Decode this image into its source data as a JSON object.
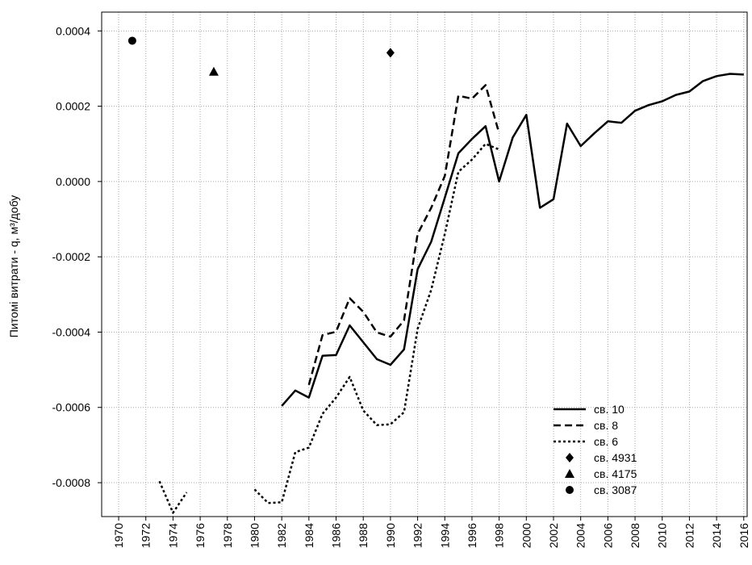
{
  "chart_data": {
    "type": "line",
    "ylabel": "Питомі витрати - q, м³/добу",
    "xlim": [
      1968.75,
      2016.25
    ],
    "xticks": [
      1970,
      1972,
      1974,
      1976,
      1978,
      1980,
      1982,
      1984,
      1986,
      1988,
      1990,
      1992,
      1994,
      1996,
      1998,
      2000,
      2002,
      2004,
      2006,
      2008,
      2010,
      2012,
      2014,
      2016
    ],
    "ylim": [
      -0.00089,
      0.00045
    ],
    "yticks": [
      0.0004,
      0.0002,
      {
        "value": 0,
        "label": "0.0000"
      },
      -0.0002,
      -0.0004,
      -0.0006,
      -0.0008
    ],
    "grid": true,
    "legend": "lower right",
    "series": [
      {
        "name": "св. 10",
        "color": "#000000",
        "style": "solid",
        "x": [
          1982,
          1983,
          1984,
          1985,
          1986,
          1987,
          1988,
          1989,
          1990,
          1991,
          1992,
          1993,
          1994,
          1995,
          1996,
          1997,
          1998,
          1999,
          2000,
          2001,
          2002,
          2003,
          2004,
          2005,
          2006,
          2007,
          2008,
          2009,
          2010,
          2011,
          2012,
          2013,
          2014,
          2015,
          2016
        ],
        "values": [
          -0.000596,
          -0.000555,
          -0.000574,
          -0.000463,
          -0.000461,
          -0.000382,
          -0.000427,
          -0.000472,
          -0.000487,
          -0.000446,
          -0.000233,
          -0.00016,
          -4.3e-05,
          7.5e-05,
          0.000113,
          0.000147,
          0.0,
          0.000117,
          0.000177,
          -7e-05,
          -4.7e-05,
          0.000154,
          9.4e-05,
          0.000128,
          0.00016,
          0.000156,
          0.000188,
          0.000203,
          0.000213,
          0.00023,
          0.000239,
          0.000267,
          0.00028,
          0.000286,
          0.000284
        ]
      },
      {
        "name": "св. 8",
        "color": "#000000",
        "style": "dashed",
        "x": [
          1984,
          1985,
          1986,
          1987,
          1988,
          1989,
          1990,
          1991,
          1992,
          1993,
          1994,
          1995,
          1996,
          1997,
          1998
        ],
        "values": [
          -0.00054,
          -0.000408,
          -0.000399,
          -0.00031,
          -0.000346,
          -0.000401,
          -0.000412,
          -0.000369,
          -0.000139,
          -7e-05,
          1.5e-05,
          0.000228,
          0.00022,
          0.000256,
          0.000128
        ]
      },
      {
        "name": "св. 6",
        "color": "#000000",
        "style": "dotted",
        "x": [
          1973,
          1974,
          1975,
          1976,
          1977,
          1978,
          1979,
          1980,
          1981,
          1982,
          1983,
          1984,
          1985,
          1986,
          1987,
          1988,
          1989,
          1990,
          1991,
          1992,
          1993,
          1994,
          1995,
          1996,
          1997,
          1998
        ],
        "values": [
          -0.000796,
          -0.00088,
          -0.000826,
          null,
          null,
          null,
          null,
          -0.000818,
          -0.000854,
          -0.000852,
          -0.000719,
          -0.000707,
          -0.000617,
          -0.000574,
          -0.000519,
          -0.000608,
          -0.000647,
          -0.000645,
          -0.000613,
          -0.000391,
          -0.000288,
          -0.000139,
          2.6e-05,
          5.8e-05,
          0.0001,
          8.5e-05
        ]
      },
      {
        "name": "св. 4931",
        "color": "#000000",
        "marker": "diamond",
        "x": [
          1990
        ],
        "values": [
          0.000342
        ]
      },
      {
        "name": "св. 4175",
        "color": "#000000",
        "marker": "triangle",
        "x": [
          1977
        ],
        "values": [
          0.000292
        ]
      },
      {
        "name": "св. 3087",
        "color": "#000000",
        "marker": "circle",
        "x": [
          1971
        ],
        "values": [
          0.000374
        ]
      }
    ]
  }
}
